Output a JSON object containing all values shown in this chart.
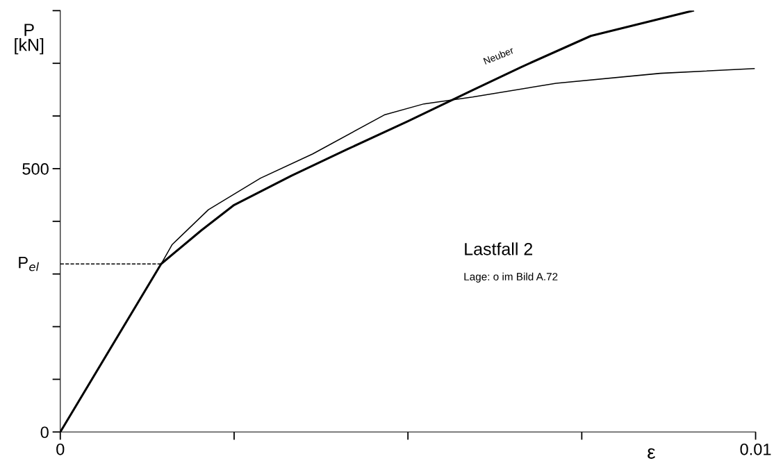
{
  "chart_data": {
    "type": "line",
    "xlabel": "ε",
    "ylabel": "P\n[kN]",
    "xlim": [
      0,
      0.01
    ],
    "ylim": [
      0,
      800
    ],
    "xticks": [
      {
        "value": 0,
        "label": "0"
      },
      {
        "value": 0.0025,
        "label": null
      },
      {
        "value": 0.005,
        "label": null
      },
      {
        "value": 0.0075,
        "label": null
      },
      {
        "value": 0.01,
        "label": "0.01"
      }
    ],
    "yticks": [
      {
        "value": 0,
        "label": "0"
      },
      {
        "value": 100,
        "label": null
      },
      {
        "value": 200,
        "label": null
      },
      {
        "value": 300,
        "label": null
      },
      {
        "value": 400,
        "label": null
      },
      {
        "value": 500,
        "label": "500"
      },
      {
        "value": 600,
        "label": null
      },
      {
        "value": 700,
        "label": null
      },
      {
        "value": 800,
        "label": null
      }
    ],
    "series": [
      {
        "name": "Neuber",
        "color": "#000000",
        "x": [
          0,
          0.00145,
          0.00203,
          0.0025,
          0.00333,
          0.00413,
          0.005,
          0.00593,
          0.00663,
          0.00763,
          0.0091
        ],
        "values": [
          0,
          319,
          383,
          431,
          487,
          537,
          590,
          649,
          693,
          752,
          800
        ]
      },
      {
        "color": "#000000",
        "x": [
          0,
          0.00145,
          0.00161,
          0.00213,
          0.00288,
          0.00363,
          0.00466,
          0.00523,
          0.00593,
          0.00713,
          0.00863,
          0.00998
        ],
        "values": [
          0,
          319,
          356,
          422,
          482,
          528,
          602,
          623,
          636,
          662,
          681,
          690
        ]
      }
    ],
    "ref_lines": [
      {
        "axis": "y",
        "value": 319,
        "label": "P$_{el}$",
        "line_style": "dashed"
      }
    ],
    "annotations": [
      "Lastfall 2",
      "Lage: o im Bild A.72"
    ],
    "grid": false,
    "legend": false,
    "marker": "none",
    "line_style": "solid"
  }
}
